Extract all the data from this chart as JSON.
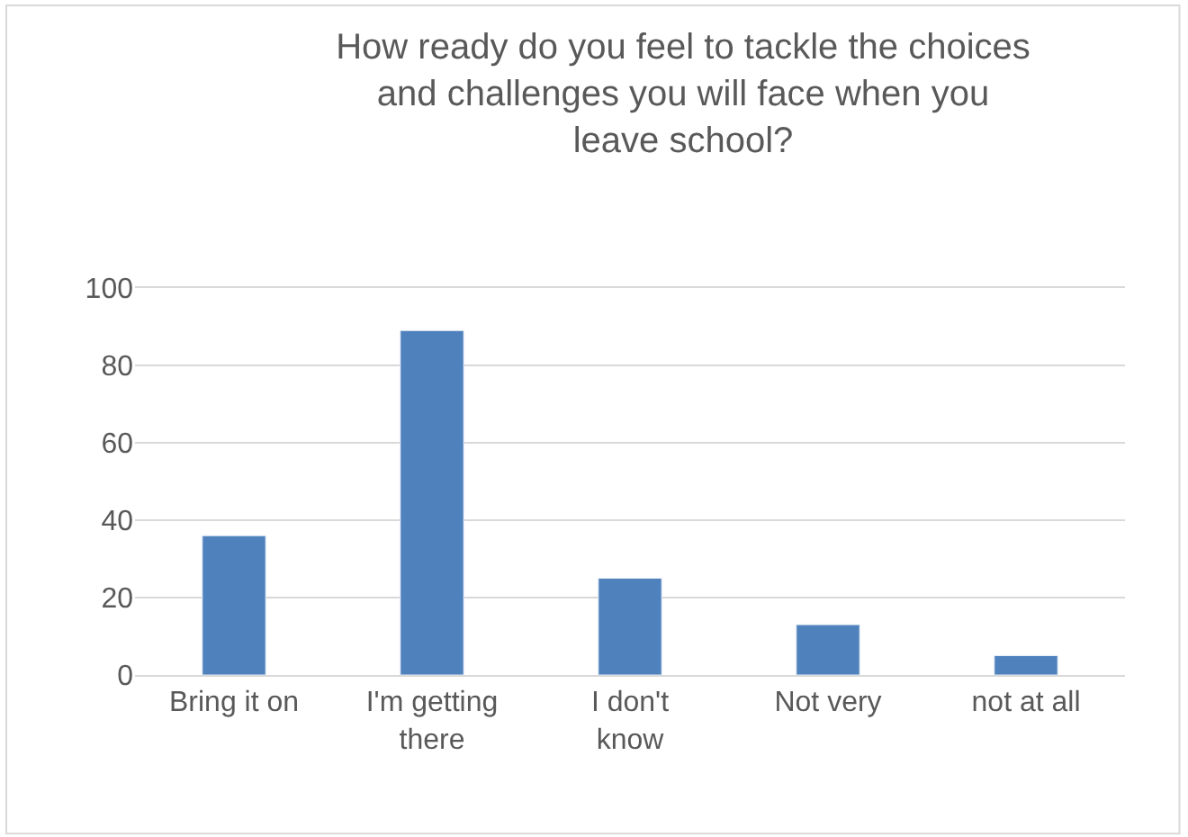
{
  "chart_data": {
    "type": "bar",
    "title": "How ready do you feel to tackle the choices\nand challenges you will face when you\nleave school?",
    "categories": [
      "Bring it on",
      "I'm getting\nthere",
      "I don't\nknow",
      "Not very",
      "not at all"
    ],
    "values": [
      36,
      89,
      25,
      13,
      5
    ],
    "color": "#4f81bd",
    "ylim": [
      0,
      100
    ],
    "yticks": [
      0,
      20,
      40,
      60,
      80,
      100
    ],
    "grid": "y"
  }
}
